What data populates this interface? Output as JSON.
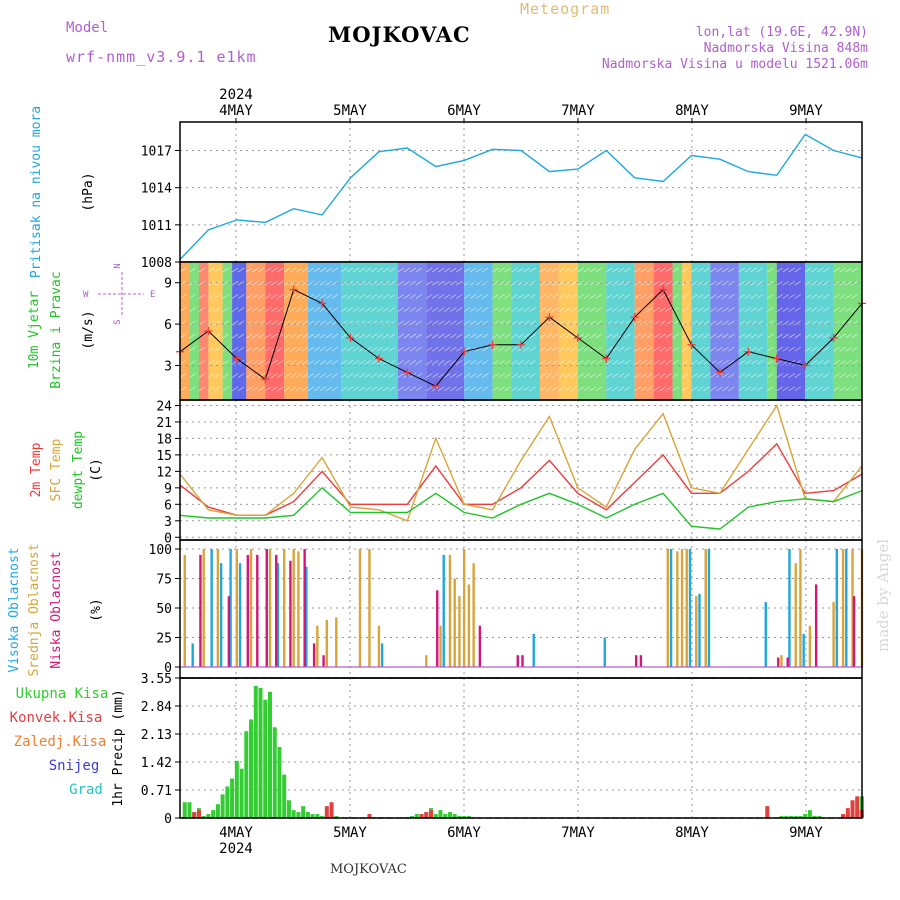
{
  "header": {
    "model_label": "Model",
    "model_name": "wrf-nmm_v3.9.1 e1km",
    "station": "MOJKOVAC",
    "product": "Meteogram",
    "lonlat": "lon,lat (19.6E, 42.9N)",
    "elevation": "Nadmorska Visina 848m",
    "model_elevation": "Nadmorska Visina u modelu 1521.06m",
    "footer_station": "MOJKOVAC",
    "credit": "made by Angel"
  },
  "colors": {
    "pressure": "#1fa7e0",
    "wind_label": "#22c22a",
    "t2m": "#ee3b3b",
    "sfc": "#d9a53a",
    "dew": "#22c22a",
    "high_cloud": "#1fa7e0",
    "mid_cloud": "#d9a53a",
    "low_cloud": "#d4157a",
    "precip_total": "#33cc33",
    "precip_conv": "#e04040",
    "precip_frz": "#f07f30",
    "snow": "#3c3cd8",
    "hail": "#22c2c2",
    "purple": "#b05fd0"
  },
  "chart_data": [
    {
      "type": "line",
      "panel": "pressure",
      "ylabel": [
        "Pritisak na nivou mora",
        "(hPa)"
      ],
      "yticks": [
        1008,
        1011,
        1014,
        1017
      ],
      "ylim": [
        1008,
        1019.3
      ],
      "x_top_labels": [
        "4MAY",
        "5MAY",
        "6MAY",
        "7MAY",
        "8MAY",
        "9MAY"
      ],
      "x_top_year": "2024",
      "x": [
        0,
        6,
        12,
        18,
        24,
        30,
        36,
        42,
        48,
        54,
        60,
        66,
        72,
        78,
        84,
        90,
        96,
        102,
        108,
        114,
        120,
        126,
        132,
        138,
        144
      ],
      "values": [
        1008.2,
        1010.6,
        1011.4,
        1011.2,
        1012.3,
        1011.8,
        1014.8,
        1016.9,
        1017.2,
        1015.7,
        1016.2,
        1017.1,
        1017.0,
        1015.3,
        1015.5,
        1017.0,
        1014.8,
        1014.5,
        1016.6,
        1016.3,
        1015.3,
        1015.0,
        1018.3,
        1017.0,
        1016.4
      ]
    },
    {
      "type": "line",
      "panel": "wind",
      "ylabel": [
        "10m Vjetar",
        "Brzina i Pravac",
        "(m/s)"
      ],
      "compass": [
        "N",
        "S",
        "W",
        "E"
      ],
      "yticks": [
        3,
        6,
        9
      ],
      "ylim": [
        0.5,
        10.5
      ],
      "x": [
        0,
        6,
        12,
        18,
        24,
        30,
        36,
        42,
        48,
        54,
        60,
        66,
        72,
        78,
        84,
        90,
        96,
        102,
        108,
        114,
        120,
        126,
        132,
        138,
        144
      ],
      "values": [
        4.0,
        5.5,
        3.5,
        2.0,
        8.5,
        7.5,
        5.0,
        3.5,
        2.5,
        1.5,
        4.0,
        4.5,
        4.5,
        6.5,
        5.0,
        3.5,
        6.5,
        8.5,
        4.5,
        2.5,
        4.0,
        3.5,
        3.0,
        5.0,
        7.5
      ]
    },
    {
      "type": "line",
      "panel": "temperature",
      "ylabel": [
        "2m Temp",
        "SFC Temp",
        "dewpt Temp",
        "(C)"
      ],
      "yticks": [
        0,
        3,
        6,
        9,
        12,
        15,
        18,
        21,
        24
      ],
      "ylim": [
        -0.5,
        25
      ],
      "x": [
        0,
        6,
        12,
        18,
        24,
        30,
        36,
        42,
        48,
        54,
        60,
        66,
        72,
        78,
        84,
        90,
        96,
        102,
        108,
        114,
        120,
        126,
        132,
        138,
        144
      ],
      "series": [
        {
          "name": "2m Temp",
          "values": [
            9.5,
            5.5,
            4.0,
            4.0,
            6.5,
            12.0,
            6.0,
            6.0,
            6.0,
            13.0,
            6.0,
            6.0,
            9.0,
            14.0,
            8.0,
            5.0,
            10.0,
            15.0,
            8.0,
            8.0,
            12.0,
            17.0,
            8.0,
            8.5,
            11.5
          ]
        },
        {
          "name": "SFC Temp",
          "values": [
            11.5,
            5.0,
            4.0,
            4.0,
            8.0,
            14.5,
            5.5,
            5.0,
            3.0,
            18.0,
            6.0,
            5.0,
            14.0,
            22.0,
            9.0,
            5.5,
            16.0,
            22.5,
            9.0,
            8.0,
            16.0,
            24.0,
            7.0,
            6.5,
            13.0
          ]
        },
        {
          "name": "dewpt Temp",
          "values": [
            4.0,
            3.5,
            3.5,
            3.5,
            4.0,
            9.0,
            4.5,
            4.5,
            4.5,
            8.0,
            4.5,
            3.5,
            6.0,
            8.0,
            6.0,
            3.5,
            6.0,
            8.0,
            2.0,
            1.5,
            5.5,
            6.5,
            7.0,
            6.5,
            8.5
          ]
        }
      ]
    },
    {
      "type": "bar",
      "panel": "clouds",
      "ylabel": [
        "Visoka Oblacnost",
        "Srednja Oblacnost",
        "Niska Oblacnost",
        "(%)"
      ],
      "yticks": [
        0,
        25,
        50,
        75,
        100
      ],
      "ylim": [
        0,
        100
      ],
      "series": [
        {
          "name": "Visoka Oblacnost",
          "x": [
            3,
            7,
            9,
            11,
            13,
            21,
            27,
            43,
            56,
            75,
            90,
            104,
            108,
            110,
            112,
            124,
            129,
            132,
            139,
            141
          ],
          "values": [
            20,
            100,
            88,
            100,
            88,
            88,
            85,
            20,
            95,
            28,
            25,
            100,
            100,
            62,
            100,
            55,
            100,
            28,
            100,
            100
          ]
        },
        {
          "name": "Srednja Oblacnost",
          "x": [
            1,
            5,
            8,
            12,
            15,
            19,
            22,
            24,
            25,
            29,
            31,
            33,
            38,
            40,
            42,
            52,
            55,
            57,
            58,
            59,
            60,
            61,
            62,
            103,
            105,
            106,
            107,
            109,
            111,
            127,
            130,
            131,
            133,
            138,
            140,
            142,
            144
          ],
          "values": [
            95,
            100,
            100,
            100,
            100,
            100,
            100,
            100,
            98,
            35,
            40,
            42,
            100,
            100,
            35,
            10,
            35,
            95,
            75,
            60,
            100,
            70,
            88,
            100,
            98,
            100,
            100,
            60,
            100,
            10,
            88,
            100,
            35,
            55,
            100,
            100,
            100
          ]
        },
        {
          "name": "Niska Oblacnost",
          "x": [
            4,
            10,
            14,
            16,
            18,
            20,
            23,
            26,
            28,
            30,
            54,
            63,
            71,
            72,
            96,
            97,
            126,
            128,
            134,
            142
          ],
          "values": [
            95,
            60,
            95,
            95,
            100,
            95,
            90,
            100,
            20,
            10,
            65,
            35,
            10,
            10,
            10,
            10,
            8,
            8,
            70,
            60
          ]
        }
      ]
    },
    {
      "type": "bar",
      "panel": "precip",
      "ylabel": [
        "1hr Precip (mm)"
      ],
      "legend": [
        "Ukupna Kisa",
        "Konvek.Kisa",
        "Zaledj.Kisa",
        "Snijeg",
        "Grad"
      ],
      "yticks": [
        0,
        0.71,
        1.42,
        2.13,
        2.84,
        3.55
      ],
      "ylim": [
        0,
        3.55
      ],
      "x_bottom_labels": [
        "4MAY",
        "5MAY",
        "6MAY",
        "7MAY",
        "8MAY",
        "9MAY"
      ],
      "x_bottom_year": "2024",
      "series": [
        {
          "name": "Ukupna Kisa",
          "x": [
            1,
            2,
            3,
            4,
            5,
            6,
            7,
            8,
            9,
            10,
            11,
            12,
            13,
            14,
            15,
            16,
            17,
            18,
            19,
            20,
            21,
            22,
            23,
            24,
            25,
            26,
            27,
            28,
            29,
            30,
            31,
            32,
            33,
            41,
            42,
            43,
            44,
            47,
            48,
            49,
            50,
            51,
            52,
            53,
            54,
            55,
            56,
            57,
            58,
            59,
            60,
            61,
            62,
            127,
            128,
            129,
            130,
            131,
            132,
            133,
            134,
            135,
            140,
            141,
            142,
            143,
            144
          ],
          "values": [
            0.4,
            0.4,
            0.15,
            0.25,
            0.05,
            0.1,
            0.2,
            0.35,
            0.6,
            0.8,
            1.0,
            1.45,
            1.25,
            2.2,
            2.5,
            3.35,
            3.3,
            3.0,
            3.2,
            2.3,
            1.8,
            1.1,
            0.45,
            0.2,
            0.15,
            0.3,
            0.15,
            0.1,
            0.1,
            0.05,
            0.05,
            0.05,
            0.05,
            0.02,
            0.02,
            0.02,
            0.02,
            0.02,
            0.02,
            0.05,
            0.1,
            0.1,
            0.15,
            0.25,
            0.1,
            0.2,
            0.1,
            0.15,
            0.1,
            0.05,
            0.05,
            0.05,
            0.02,
            0.05,
            0.05,
            0.05,
            0.05,
            0.05,
            0.1,
            0.2,
            0.05,
            0.05,
            0.05,
            0.1,
            0.35,
            0.5,
            0.55
          ]
        },
        {
          "name": "Konvek.Kisa",
          "x": [
            3,
            4,
            31,
            32,
            40,
            51,
            52,
            53,
            124,
            140,
            141,
            142,
            143,
            144
          ],
          "values": [
            0.15,
            0.2,
            0.3,
            0.4,
            0.1,
            0.1,
            0.15,
            0.2,
            0.3,
            0.1,
            0.25,
            0.45,
            0.55,
            0.2
          ]
        }
      ]
    }
  ]
}
